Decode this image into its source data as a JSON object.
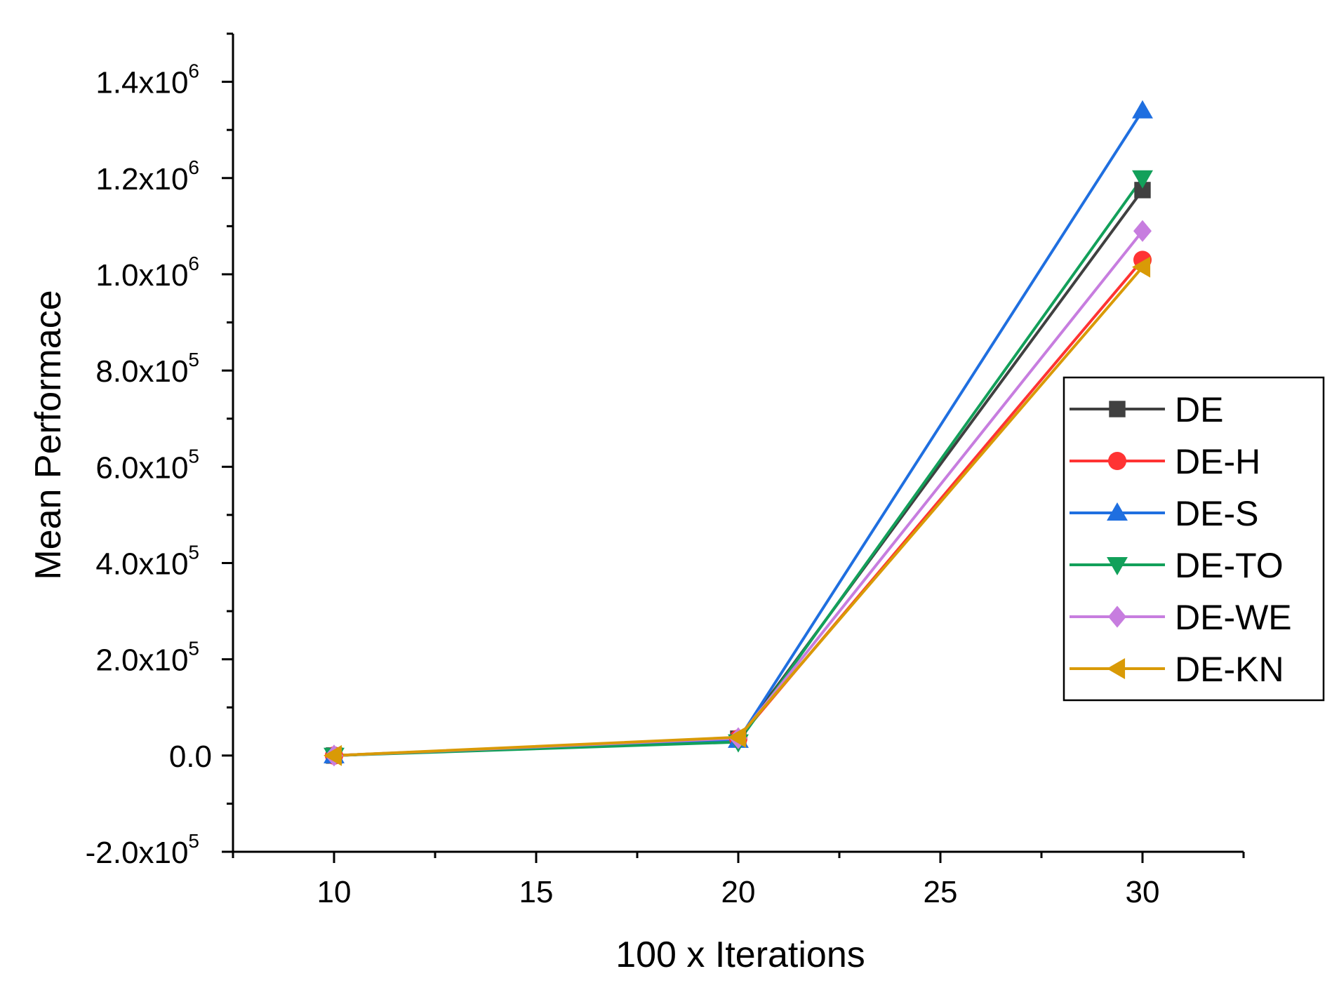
{
  "chart_data": {
    "type": "line",
    "title": "",
    "xlabel": "100 x Iterations",
    "ylabel": "Mean Performace",
    "x": [
      10,
      20,
      30
    ],
    "xlim": [
      7.5,
      32.5
    ],
    "ylim": [
      -200000,
      1500000
    ],
    "x_ticks": [
      10,
      15,
      20,
      25,
      30
    ],
    "x_tick_labels": [
      "10",
      "15",
      "20",
      "25",
      "30"
    ],
    "y_ticks": [
      -200000,
      0,
      200000,
      400000,
      600000,
      800000,
      1000000,
      1200000,
      1400000
    ],
    "y_tick_labels": [
      {
        "mantissa": "-2.0x10",
        "exp": "5"
      },
      {
        "mantissa": "0.0",
        "exp": ""
      },
      {
        "mantissa": "2.0x10",
        "exp": "5"
      },
      {
        "mantissa": "4.0x10",
        "exp": "5"
      },
      {
        "mantissa": "6.0x10",
        "exp": "5"
      },
      {
        "mantissa": "8.0x10",
        "exp": "5"
      },
      {
        "mantissa": "1.0x10",
        "exp": "6"
      },
      {
        "mantissa": "1.2x10",
        "exp": "6"
      },
      {
        "mantissa": "1.4x10",
        "exp": "6"
      }
    ],
    "legend_position": "right",
    "grid": false,
    "series": [
      {
        "name": "DE",
        "color": "#404040",
        "marker": "square",
        "values": [
          0,
          35000,
          1175000
        ]
      },
      {
        "name": "DE-H",
        "color": "#ff3333",
        "marker": "circle",
        "values": [
          0,
          35000,
          1030000
        ]
      },
      {
        "name": "DE-S",
        "color": "#1f6fe0",
        "marker": "triangle-up",
        "values": [
          0,
          32000,
          1340000
        ]
      },
      {
        "name": "DE-TO",
        "color": "#12a05a",
        "marker": "triangle-down",
        "values": [
          0,
          28000,
          1200000
        ]
      },
      {
        "name": "DE-WE",
        "color": "#c77ddf",
        "marker": "diamond",
        "values": [
          0,
          36000,
          1090000
        ]
      },
      {
        "name": "DE-KN",
        "color": "#d99a06",
        "marker": "triangle-left",
        "values": [
          0,
          38000,
          1015000
        ]
      }
    ]
  }
}
